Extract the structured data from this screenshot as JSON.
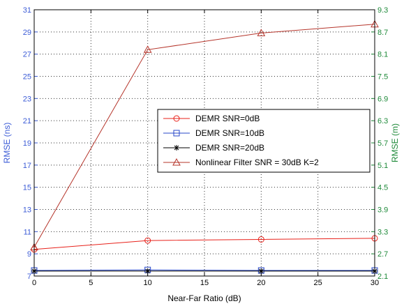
{
  "chart_data": {
    "type": "line",
    "xlabel": "Near-Far Ratio (dB)",
    "ylabel_left": "RMSE (ns)",
    "ylabel_right": "RMSE (m)",
    "xlim": [
      0,
      30
    ],
    "ylim_left": [
      7,
      31
    ],
    "ylim_right": [
      2.1,
      9.3
    ],
    "x_ticks": [
      "0",
      "5",
      "10",
      "15",
      "20",
      "25",
      "30"
    ],
    "y_left_ticks": [
      "7",
      "9",
      "11",
      "13",
      "15",
      "17",
      "19",
      "21",
      "23",
      "25",
      "27",
      "29",
      "31"
    ],
    "y_right_ticks": [
      "2.1",
      "2.7",
      "3.3",
      "3.9",
      "4.5",
      "5.1",
      "5.7",
      "6.3",
      "6.9",
      "7.5",
      "8.1",
      "8.7",
      "9.3"
    ],
    "grid": true,
    "legend_position": "center-right",
    "colors": {
      "axis_left": "#3b5bd6",
      "axis_right": "#1f8a3a",
      "grid": "#333333"
    },
    "series": [
      {
        "name": "DEMR SNR=0dB",
        "color": "#e8211a",
        "marker": "circle",
        "x": [
          0,
          10,
          20,
          30
        ],
        "y": [
          9.4,
          10.2,
          10.3,
          10.4
        ]
      },
      {
        "name": "DEMR SNR=10dB",
        "color": "#2747c9",
        "marker": "square",
        "x": [
          0,
          10,
          20,
          30
        ],
        "y": [
          7.5,
          7.55,
          7.5,
          7.5
        ]
      },
      {
        "name": "DEMR SNR=20dB",
        "color": "#000000",
        "marker": "star",
        "x": [
          0,
          10,
          20,
          30
        ],
        "y": [
          7.45,
          7.45,
          7.45,
          7.45
        ]
      },
      {
        "name": "Nonlinear Filter SNR = 30dB K=2",
        "color": "#b5342a",
        "marker": "triangle",
        "x": [
          0,
          10,
          20,
          30
        ],
        "y": [
          9.6,
          27.4,
          28.9,
          29.7
        ]
      }
    ]
  }
}
